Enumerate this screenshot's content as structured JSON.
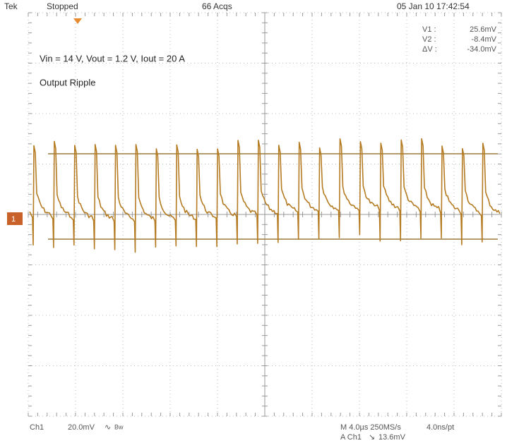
{
  "header": {
    "brand": "Tek",
    "status": "Stopped",
    "acquisitions": "66 Acqs",
    "timestamp": "05 Jan 10 17:42:54"
  },
  "readouts": [
    {
      "label": "V1 :",
      "value": "25.6mV"
    },
    {
      "label": "V2 :",
      "value": "-8.4mV"
    },
    {
      "label": "ΔV :",
      "value": "-34.0mV"
    }
  ],
  "annotations": {
    "conditions": "Vin = 14 V, Vout = 1.2 V, Iout = 20 A",
    "title": "Output Ripple"
  },
  "channel_marker": "1",
  "footer": {
    "channel": "Ch1",
    "scale": "20.0mV",
    "bandwidth": "Bw",
    "timebase": "M 4.0µs 250MS/s",
    "resolution": "4.0ns/pt",
    "trigger_source": "A Ch1",
    "trigger_level": "13.6mV"
  }
}
